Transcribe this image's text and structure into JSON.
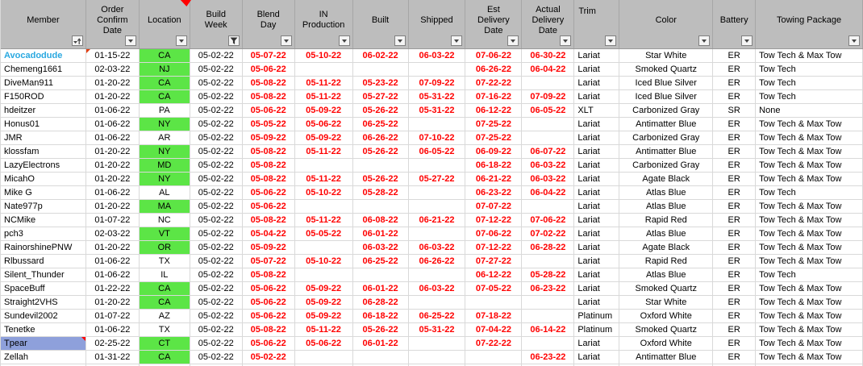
{
  "colors": {
    "header_bg": "#bdbdbd",
    "location_highlight_green": "#5ce546",
    "alert_date_red": "#ff0000",
    "selected_cell_blue": "#8ea0db",
    "member_link_blue": "#29a8e0",
    "comment_indicator_red": "#ff0000"
  },
  "table": {
    "columns": [
      {
        "label": "Member",
        "filter": "sort-ascending"
      },
      {
        "label": "Order\nConfirm\nDate",
        "filter": "dropdown"
      },
      {
        "label": "Location",
        "filter": "dropdown"
      },
      {
        "label": "Build\nWeek",
        "filter": "funnel"
      },
      {
        "label": "Blend\nDay",
        "filter": "dropdown"
      },
      {
        "label": "IN\nProduction",
        "filter": "dropdown"
      },
      {
        "label": "Built",
        "filter": "dropdown"
      },
      {
        "label": "Shipped",
        "filter": "dropdown"
      },
      {
        "label": "Est\nDelivery\nDate",
        "filter": "dropdown"
      },
      {
        "label": "Actual\nDelivery\nDate",
        "filter": "dropdown"
      },
      {
        "label": "Trim",
        "filter": "dropdown"
      },
      {
        "label": "Color",
        "filter": "dropdown"
      },
      {
        "label": "Battery",
        "filter": "dropdown"
      },
      {
        "label": "Towing Package",
        "filter": "dropdown"
      }
    ],
    "rows": [
      {
        "member": "Avocadodude",
        "member_link": true,
        "comment": "order",
        "order_confirm": "01-15-22",
        "location": "CA",
        "location_green": true,
        "build_week": "05-02-22",
        "blend_day": "05-07-22",
        "in_production": "05-10-22",
        "built": "06-02-22",
        "shipped": "06-03-22",
        "est_delivery": "07-06-22",
        "actual_delivery": "06-30-22",
        "trim": "Lariat",
        "color": "Star White",
        "battery": "ER",
        "towing": "Tow Tech & Max Tow"
      },
      {
        "member": "Chemeng1661",
        "order_confirm": "02-03-22",
        "location": "NJ",
        "location_green": true,
        "build_week": "05-02-22",
        "blend_day": "05-06-22",
        "in_production": "",
        "built": "",
        "shipped": "",
        "est_delivery": "06-26-22",
        "actual_delivery": "06-04-22",
        "trim": "Lariat",
        "color": "Smoked Quartz",
        "battery": "ER",
        "towing": "Tow Tech"
      },
      {
        "member": "DiveMan911",
        "order_confirm": "01-20-22",
        "location": "CA",
        "location_green": true,
        "build_week": "05-02-22",
        "blend_day": "05-08-22",
        "in_production": "05-11-22",
        "built": "05-23-22",
        "shipped": "07-09-22",
        "est_delivery": "07-22-22",
        "actual_delivery": "",
        "trim": "Lariat",
        "color": "Iced Blue Silver",
        "battery": "ER",
        "towing": "Tow Tech"
      },
      {
        "member": "F150ROD",
        "order_confirm": "01-20-22",
        "location": "CA",
        "location_green": true,
        "build_week": "05-02-22",
        "blend_day": "05-08-22",
        "in_production": "05-11-22",
        "built": "05-27-22",
        "shipped": "05-31-22",
        "est_delivery": "07-16-22",
        "actual_delivery": "07-09-22",
        "trim": "Lariat",
        "color": "Iced Blue Silver",
        "battery": "ER",
        "towing": "Tow Tech"
      },
      {
        "member": "hdeitzer",
        "order_confirm": "01-06-22",
        "location": "PA",
        "location_green": false,
        "build_week": "05-02-22",
        "blend_day": "05-06-22",
        "in_production": "05-09-22",
        "built": "05-26-22",
        "shipped": "05-31-22",
        "est_delivery": "06-12-22",
        "actual_delivery": "06-05-22",
        "trim": "XLT",
        "color": "Carbonized Gray",
        "battery": "SR",
        "towing": "None"
      },
      {
        "member": "Honus01",
        "order_confirm": "01-06-22",
        "location": "NY",
        "location_green": true,
        "build_week": "05-02-22",
        "blend_day": "05-05-22",
        "in_production": "05-06-22",
        "built": "06-25-22",
        "shipped": "",
        "est_delivery": "07-25-22",
        "actual_delivery": "",
        "trim": "Lariat",
        "color": "Antimatter Blue",
        "battery": "ER",
        "towing": "Tow Tech & Max Tow"
      },
      {
        "member": "JMR",
        "order_confirm": "01-06-22",
        "location": "AR",
        "location_green": false,
        "build_week": "05-02-22",
        "blend_day": "05-09-22",
        "in_production": "05-09-22",
        "built": "06-26-22",
        "shipped": "07-10-22",
        "est_delivery": "07-25-22",
        "actual_delivery": "",
        "trim": "Lariat",
        "color": "Carbonized Gray",
        "battery": "ER",
        "towing": "Tow Tech & Max Tow"
      },
      {
        "member": "klossfam",
        "order_confirm": "01-20-22",
        "location": "NY",
        "location_green": true,
        "build_week": "05-02-22",
        "blend_day": "05-08-22",
        "in_production": "05-11-22",
        "built": "05-26-22",
        "shipped": "06-05-22",
        "est_delivery": "06-09-22",
        "actual_delivery": "06-07-22",
        "trim": "Lariat",
        "color": "Antimatter Blue",
        "battery": "ER",
        "towing": "Tow Tech & Max Tow"
      },
      {
        "member": "LazyElectrons",
        "order_confirm": "01-20-22",
        "location": "MD",
        "location_green": true,
        "build_week": "05-02-22",
        "blend_day": "05-08-22",
        "in_production": "",
        "built": "",
        "shipped": "",
        "est_delivery": "06-18-22",
        "actual_delivery": "06-03-22",
        "trim": "Lariat",
        "color": "Carbonized Gray",
        "battery": "ER",
        "towing": "Tow Tech & Max Tow"
      },
      {
        "member": "MicahO",
        "order_confirm": "01-20-22",
        "location": "NY",
        "location_green": true,
        "build_week": "05-02-22",
        "blend_day": "05-08-22",
        "in_production": "05-11-22",
        "built": "05-26-22",
        "shipped": "05-27-22",
        "est_delivery": "06-21-22",
        "actual_delivery": "06-03-22",
        "trim": "Lariat",
        "color": "Agate Black",
        "battery": "ER",
        "towing": "Tow Tech & Max Tow"
      },
      {
        "member": "Mike G",
        "order_confirm": "01-06-22",
        "location": "AL",
        "location_green": false,
        "build_week": "05-02-22",
        "blend_day": "05-06-22",
        "in_production": "05-10-22",
        "built": "05-28-22",
        "shipped": "",
        "est_delivery": "06-23-22",
        "actual_delivery": "06-04-22",
        "trim": "Lariat",
        "color": "Atlas Blue",
        "battery": "ER",
        "towing": "Tow Tech"
      },
      {
        "member": "Nate977p",
        "order_confirm": "01-20-22",
        "location": "MA",
        "location_green": true,
        "build_week": "05-02-22",
        "blend_day": "05-06-22",
        "in_production": "",
        "built": "",
        "shipped": "",
        "est_delivery": "07-07-22",
        "actual_delivery": "",
        "trim": "Lariat",
        "color": "Atlas Blue",
        "battery": "ER",
        "towing": "Tow Tech & Max Tow"
      },
      {
        "member": "NCMike",
        "order_confirm": "01-07-22",
        "location": "NC",
        "location_green": false,
        "build_week": "05-02-22",
        "blend_day": "05-08-22",
        "in_production": "05-11-22",
        "built": "06-08-22",
        "shipped": "06-21-22",
        "est_delivery": "07-12-22",
        "actual_delivery": "07-06-22",
        "trim": "Lariat",
        "color": "Rapid Red",
        "battery": "ER",
        "towing": "Tow Tech & Max Tow"
      },
      {
        "member": "pch3",
        "order_confirm": "02-03-22",
        "location": "VT",
        "location_green": true,
        "build_week": "05-02-22",
        "blend_day": "05-04-22",
        "in_production": "05-05-22",
        "built": "06-01-22",
        "shipped": "",
        "est_delivery": "07-06-22",
        "actual_delivery": "07-02-22",
        "trim": "Lariat",
        "color": "Atlas Blue",
        "battery": "ER",
        "towing": "Tow Tech & Max Tow"
      },
      {
        "member": "RainorshinePNW",
        "order_confirm": "01-20-22",
        "location": "OR",
        "location_green": true,
        "build_week": "05-02-22",
        "blend_day": "05-09-22",
        "in_production": "",
        "built": "06-03-22",
        "shipped": "06-03-22",
        "est_delivery": "07-12-22",
        "actual_delivery": "06-28-22",
        "trim": "Lariat",
        "color": "Agate Black",
        "battery": "ER",
        "towing": "Tow Tech & Max Tow"
      },
      {
        "member": "Rlbussard",
        "order_confirm": "01-06-22",
        "location": "TX",
        "location_green": false,
        "build_week": "05-02-22",
        "blend_day": "05-07-22",
        "in_production": "05-10-22",
        "built": "06-25-22",
        "shipped": "06-26-22",
        "est_delivery": "07-27-22",
        "actual_delivery": "",
        "trim": "Lariat",
        "color": "Rapid Red",
        "battery": "ER",
        "towing": "Tow Tech & Max Tow"
      },
      {
        "member": "Silent_Thunder",
        "order_confirm": "01-06-22",
        "location": "IL",
        "location_green": false,
        "build_week": "05-02-22",
        "blend_day": "05-08-22",
        "in_production": "",
        "built": "",
        "shipped": "",
        "est_delivery": "06-12-22",
        "actual_delivery": "05-28-22",
        "trim": "Lariat",
        "color": "Atlas Blue",
        "battery": "ER",
        "towing": "Tow Tech"
      },
      {
        "member": "SpaceBuff",
        "order_confirm": "01-22-22",
        "location": "CA",
        "location_green": true,
        "build_week": "05-02-22",
        "blend_day": "05-06-22",
        "in_production": "05-09-22",
        "built": "06-01-22",
        "shipped": "06-03-22",
        "est_delivery": "07-05-22",
        "actual_delivery": "06-23-22",
        "trim": "Lariat",
        "color": "Smoked Quartz",
        "battery": "ER",
        "towing": "Tow Tech & Max Tow"
      },
      {
        "member": "Straight2VHS",
        "order_confirm": "01-20-22",
        "location": "CA",
        "location_green": true,
        "build_week": "05-02-22",
        "blend_day": "05-06-22",
        "in_production": "05-09-22",
        "built": "06-28-22",
        "shipped": "",
        "est_delivery": "",
        "actual_delivery": "",
        "trim": "Lariat",
        "color": "Star White",
        "battery": "ER",
        "towing": "Tow Tech & Max Tow"
      },
      {
        "member": "Sundevil2002",
        "order_confirm": "01-07-22",
        "location": "AZ",
        "location_green": false,
        "build_week": "05-02-22",
        "blend_day": "05-06-22",
        "in_production": "05-09-22",
        "built": "06-18-22",
        "shipped": "06-25-22",
        "est_delivery": "07-18-22",
        "actual_delivery": "",
        "trim": "Platinum",
        "color": "Oxford White",
        "battery": "ER",
        "towing": "Tow Tech & Max Tow"
      },
      {
        "member": "Tenetke",
        "order_confirm": "01-06-22",
        "location": "TX",
        "location_green": false,
        "build_week": "05-02-22",
        "blend_day": "05-08-22",
        "in_production": "05-11-22",
        "built": "05-26-22",
        "shipped": "05-31-22",
        "est_delivery": "07-04-22",
        "actual_delivery": "06-14-22",
        "trim": "Platinum",
        "color": "Smoked Quartz",
        "battery": "ER",
        "towing": "Tow Tech & Max Tow"
      },
      {
        "member": "Tpear",
        "member_selected": true,
        "comment": "member",
        "order_confirm": "02-25-22",
        "location": "CT",
        "location_green": true,
        "build_week": "05-02-22",
        "blend_day": "05-06-22",
        "in_production": "05-06-22",
        "built": "06-01-22",
        "shipped": "",
        "est_delivery": "07-22-22",
        "actual_delivery": "",
        "trim": "Lariat",
        "color": "Oxford White",
        "battery": "ER",
        "towing": "Tow Tech & Max Tow"
      },
      {
        "member": "Zellah",
        "order_confirm": "01-31-22",
        "location": "CA",
        "location_green": true,
        "build_week": "05-02-22",
        "blend_day": "05-02-22",
        "in_production": "",
        "built": "",
        "shipped": "",
        "est_delivery": "",
        "actual_delivery": "06-23-22",
        "trim": "Lariat",
        "color": "Antimatter Blue",
        "battery": "ER",
        "towing": "Tow Tech & Max Tow"
      }
    ]
  }
}
